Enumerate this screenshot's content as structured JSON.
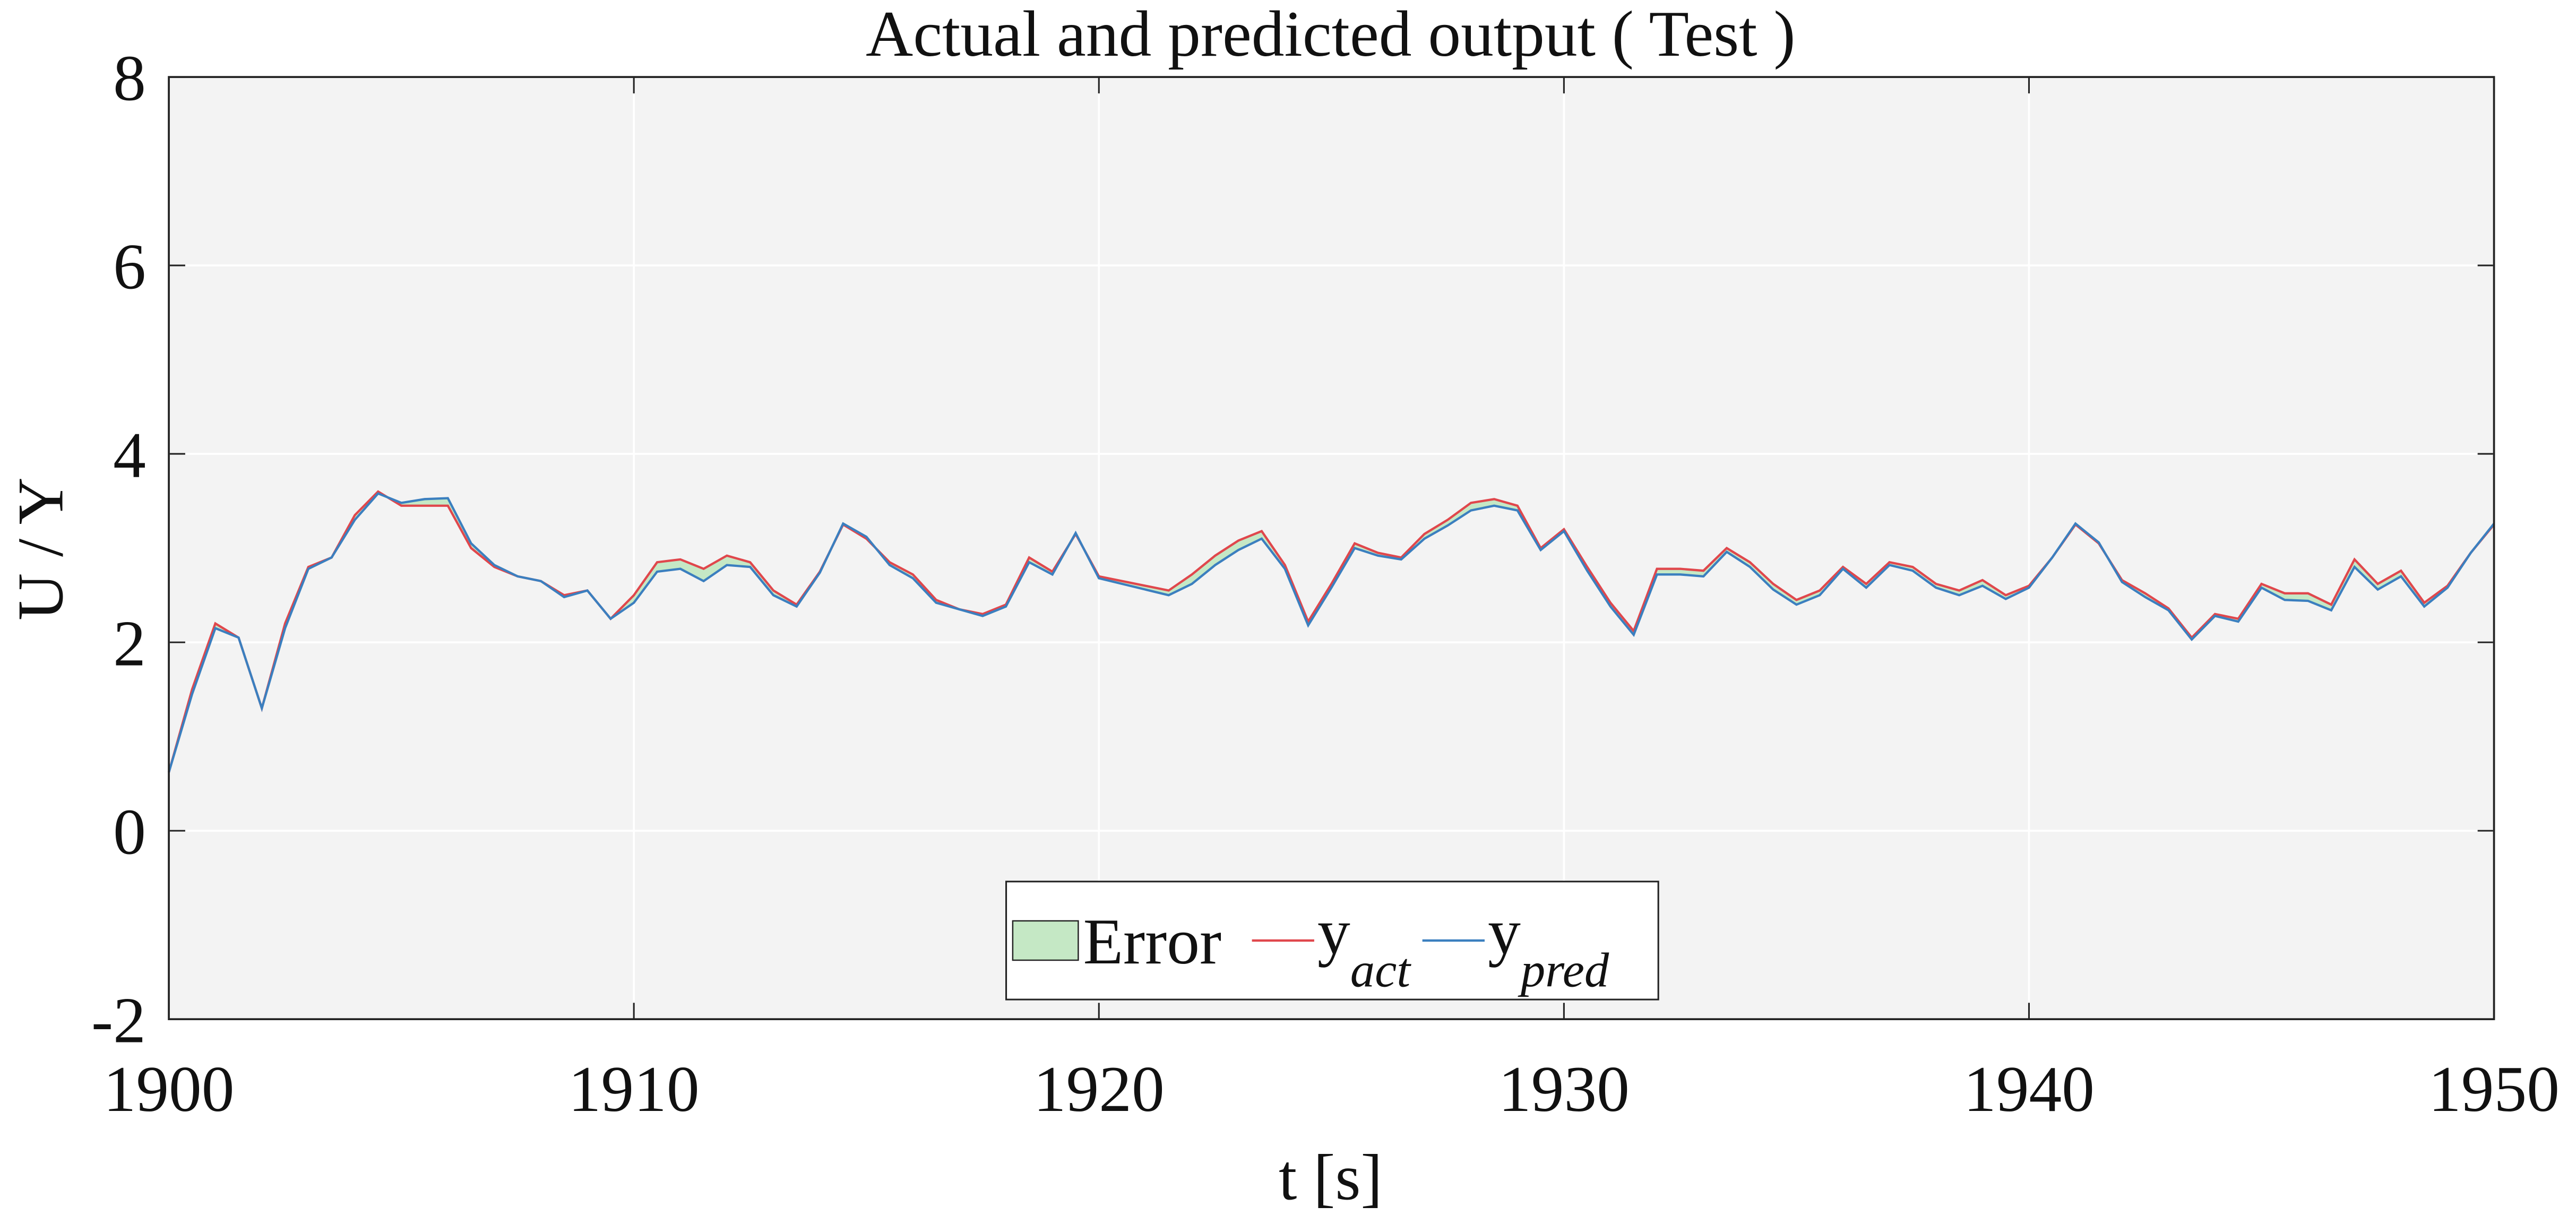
{
  "chart_data": {
    "type": "line",
    "title": "Actual and predicted output ( Test  )",
    "x_label": "t [s]",
    "y_label": "U / Y",
    "xlim": [
      1900,
      1950
    ],
    "xticks": [
      1900,
      1910,
      1920,
      1930,
      1940,
      1950
    ],
    "ylim": [
      -2,
      8
    ],
    "yticks": [
      -2,
      0,
      2,
      4,
      6,
      8
    ],
    "grid": true,
    "legend": "lower center",
    "error_band": {
      "name": "Error",
      "color": "#c5e8c5"
    },
    "x": [
      1900,
      1900.5,
      1901,
      1901.5,
      1902,
      1902.5,
      1903,
      1903.5,
      1904,
      1904.5,
      1905,
      1905.5,
      1906,
      1906.5,
      1907,
      1907.5,
      1908,
      1908.5,
      1909,
      1909.5,
      1910,
      1910.5,
      1911,
      1911.5,
      1912,
      1912.5,
      1913,
      1913.5,
      1914,
      1914.5,
      1915,
      1915.5,
      1916,
      1916.5,
      1917,
      1917.5,
      1918,
      1918.5,
      1919,
      1919.5,
      1920,
      1920.5,
      1921,
      1921.5,
      1922,
      1922.5,
      1923,
      1923.5,
      1924,
      1924.5,
      1925,
      1925.5,
      1926,
      1926.5,
      1927,
      1927.5,
      1928,
      1928.5,
      1929,
      1929.5,
      1930,
      1930.5,
      1931,
      1931.5,
      1932,
      1932.5,
      1933,
      1933.5,
      1934,
      1934.5,
      1935,
      1935.5,
      1936,
      1936.5,
      1937,
      1937.5,
      1938,
      1938.5,
      1939,
      1939.5,
      1940,
      1940.5,
      1941,
      1941.5,
      1942,
      1942.5,
      1943,
      1943.5,
      1944,
      1944.5,
      1945,
      1945.5,
      1946,
      1946.5,
      1947,
      1947.5,
      1948,
      1948.5,
      1949,
      1949.5,
      1950
    ],
    "series": [
      {
        "name": "y",
        "name_sub": "act",
        "color": "#e0474c",
        "values": [
          0.62,
          1.5,
          2.2,
          2.05,
          1.3,
          2.2,
          2.8,
          2.9,
          3.35,
          3.6,
          3.45,
          3.45,
          3.45,
          3.0,
          2.8,
          2.7,
          2.65,
          2.5,
          2.55,
          2.25,
          2.5,
          2.85,
          2.88,
          2.78,
          2.92,
          2.85,
          2.55,
          2.4,
          2.75,
          3.25,
          3.1,
          2.85,
          2.72,
          2.45,
          2.35,
          2.3,
          2.4,
          2.9,
          2.75,
          3.15,
          2.7,
          2.65,
          2.6,
          2.55,
          2.72,
          2.92,
          3.08,
          3.18,
          2.82,
          2.22,
          2.62,
          3.05,
          2.95,
          2.9,
          3.15,
          3.3,
          3.48,
          3.52,
          3.45,
          3.0,
          3.2,
          2.8,
          2.42,
          2.12,
          2.78,
          2.78,
          2.76,
          3.0,
          2.85,
          2.62,
          2.45,
          2.55,
          2.8,
          2.62,
          2.85,
          2.8,
          2.62,
          2.55,
          2.66,
          2.5,
          2.6,
          2.9,
          3.25,
          3.05,
          2.66,
          2.52,
          2.36,
          2.05,
          2.3,
          2.25,
          2.62,
          2.52,
          2.52,
          2.4,
          2.88,
          2.62,
          2.76,
          2.42,
          2.6,
          2.95,
          3.25
        ]
      },
      {
        "name": "y",
        "name_sub": "pred",
        "color": "#3b7fbf",
        "values": [
          0.62,
          1.45,
          2.15,
          2.05,
          1.3,
          2.15,
          2.78,
          2.9,
          3.3,
          3.58,
          3.48,
          3.52,
          3.53,
          3.05,
          2.82,
          2.7,
          2.65,
          2.48,
          2.55,
          2.25,
          2.42,
          2.75,
          2.78,
          2.65,
          2.82,
          2.8,
          2.5,
          2.38,
          2.74,
          3.26,
          3.12,
          2.82,
          2.68,
          2.42,
          2.35,
          2.28,
          2.38,
          2.85,
          2.72,
          3.16,
          2.68,
          2.62,
          2.56,
          2.5,
          2.62,
          2.82,
          2.98,
          3.1,
          2.78,
          2.18,
          2.58,
          3.0,
          2.92,
          2.88,
          3.1,
          3.24,
          3.4,
          3.45,
          3.4,
          2.98,
          3.18,
          2.76,
          2.38,
          2.08,
          2.72,
          2.72,
          2.7,
          2.96,
          2.8,
          2.56,
          2.4,
          2.5,
          2.78,
          2.58,
          2.82,
          2.76,
          2.58,
          2.5,
          2.6,
          2.46,
          2.58,
          2.9,
          3.26,
          3.06,
          2.64,
          2.48,
          2.34,
          2.03,
          2.28,
          2.22,
          2.58,
          2.45,
          2.44,
          2.34,
          2.8,
          2.56,
          2.7,
          2.38,
          2.58,
          2.95,
          3.26
        ]
      }
    ]
  }
}
